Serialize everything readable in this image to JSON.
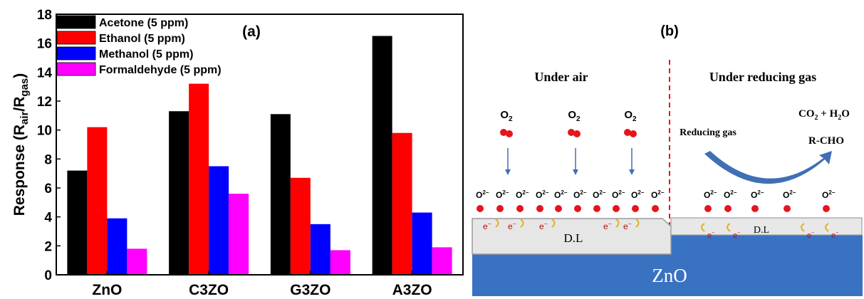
{
  "chart_data": {
    "type": "bar",
    "panel_label": "(a)",
    "categories": [
      "ZnO",
      "C3ZO",
      "G3ZO",
      "A3ZO"
    ],
    "ylabel": "Response (Rair/Rgas)",
    "ylabel_parts": {
      "prefix": "Response (R",
      "sub1": "air",
      "mid": "/R",
      "sub2": "gas",
      "suffix": ")"
    },
    "ylim": [
      0,
      18
    ],
    "yticks": [
      "0",
      "2",
      "4",
      "6",
      "8",
      "10",
      "12",
      "14",
      "16",
      "18"
    ],
    "grid": false,
    "legend_position": "top-left",
    "series": [
      {
        "name": "Acetone (5 ppm)",
        "color": "#000000",
        "values": [
          7.2,
          11.3,
          11.1,
          16.5
        ]
      },
      {
        "name": "Ethanol (5 ppm)",
        "color": "#ff0000",
        "values": [
          10.2,
          13.2,
          6.7,
          9.8
        ]
      },
      {
        "name": "Methanol (5 ppm)",
        "color": "#0000ff",
        "values": [
          3.9,
          7.5,
          3.5,
          4.3
        ]
      },
      {
        "name": "Formaldehyde (5 ppm)",
        "color": "#ff00ff",
        "values": [
          1.8,
          5.6,
          1.7,
          1.9
        ]
      }
    ]
  },
  "diagram": {
    "panel_label": "(b)",
    "left_title": "Under air",
    "right_title": "Under reducing gas",
    "o2_base": "O",
    "o2_sub": "2",
    "oxy_base": "O",
    "oxy_sup": "2−",
    "electron_base": "e",
    "electron_sup": "−",
    "dl_label": "D.L",
    "substrate_label": "ZnO",
    "reducing_gas_label": "Reducing gas",
    "products_co2_base": "CO",
    "products_co2_sub": "2",
    "products_plus": " + H",
    "products_h2o_sub": "2",
    "products_h2o_o": "O",
    "products_rcho": "R-CHO",
    "colors": {
      "oxygen": "#e8141c",
      "substrate": "#3a72c2",
      "arrow": "#3f6fb5",
      "divider": "#e8141c",
      "electron_arc": "#e0b020"
    }
  }
}
